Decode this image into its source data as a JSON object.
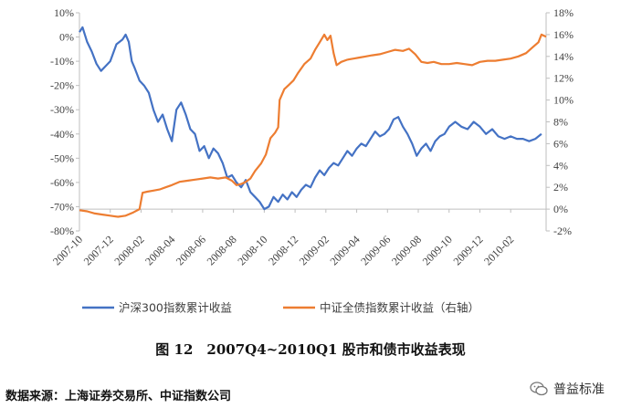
{
  "chart_data": {
    "type": "line",
    "title": "",
    "x_tick_labels": [
      "2007-10",
      "2007-12",
      "2008-02",
      "2008-04",
      "2008-06",
      "2008-08",
      "2008-10",
      "2008-12",
      "2009-02",
      "2009-04",
      "2009-06",
      "2009-08",
      "2009-10",
      "2009-12",
      "2010-02"
    ],
    "left_axis": {
      "ticks": [
        "10%",
        "0%",
        "-10%",
        "-20%",
        "-30%",
        "-40%",
        "-50%",
        "-60%",
        "-70%",
        "-80%"
      ],
      "ylim": [
        -80,
        10
      ],
      "unit": "%"
    },
    "right_axis": {
      "ticks": [
        "18%",
        "16%",
        "14%",
        "12%",
        "10%",
        "8%",
        "6%",
        "4%",
        "2%",
        "0%",
        "-2%"
      ],
      "ylim": [
        -2,
        18
      ],
      "unit": "%"
    },
    "x_domain": [
      0,
      30.3
    ],
    "series": [
      {
        "name": "沪深300指数累计收益",
        "axis": "left",
        "color": "#4472C4",
        "points": [
          [
            0,
            2
          ],
          [
            0.2,
            4
          ],
          [
            0.5,
            -2
          ],
          [
            0.8,
            -6
          ],
          [
            1.1,
            -11
          ],
          [
            1.4,
            -14
          ],
          [
            1.7,
            -12
          ],
          [
            2.0,
            -10
          ],
          [
            2.4,
            -3
          ],
          [
            2.8,
            -1
          ],
          [
            3.0,
            1
          ],
          [
            3.2,
            -2
          ],
          [
            3.4,
            -10
          ],
          [
            3.6,
            -13
          ],
          [
            3.9,
            -18
          ],
          [
            4.2,
            -20
          ],
          [
            4.5,
            -23
          ],
          [
            4.8,
            -30
          ],
          [
            5.1,
            -35
          ],
          [
            5.4,
            -32
          ],
          [
            5.7,
            -38
          ],
          [
            6.0,
            -43
          ],
          [
            6.3,
            -30
          ],
          [
            6.6,
            -27
          ],
          [
            6.9,
            -32
          ],
          [
            7.2,
            -38
          ],
          [
            7.5,
            -40
          ],
          [
            7.8,
            -47
          ],
          [
            8.1,
            -45
          ],
          [
            8.4,
            -50
          ],
          [
            8.7,
            -46
          ],
          [
            9.0,
            -48
          ],
          [
            9.3,
            -52
          ],
          [
            9.6,
            -58
          ],
          [
            9.9,
            -57
          ],
          [
            10.2,
            -60
          ],
          [
            10.5,
            -62
          ],
          [
            10.8,
            -59
          ],
          [
            11.1,
            -64
          ],
          [
            11.4,
            -66
          ],
          [
            11.7,
            -68
          ],
          [
            12.0,
            -71
          ],
          [
            12.3,
            -70
          ],
          [
            12.6,
            -66
          ],
          [
            12.9,
            -68
          ],
          [
            13.2,
            -65
          ],
          [
            13.5,
            -67
          ],
          [
            13.8,
            -64
          ],
          [
            14.1,
            -66
          ],
          [
            14.4,
            -63
          ],
          [
            14.7,
            -61
          ],
          [
            15.0,
            -62
          ],
          [
            15.3,
            -58
          ],
          [
            15.6,
            -55
          ],
          [
            15.9,
            -57
          ],
          [
            16.2,
            -54
          ],
          [
            16.5,
            -52
          ],
          [
            16.8,
            -53
          ],
          [
            17.1,
            -50
          ],
          [
            17.4,
            -47
          ],
          [
            17.7,
            -49
          ],
          [
            18.0,
            -46
          ],
          [
            18.3,
            -44
          ],
          [
            18.6,
            -45
          ],
          [
            18.9,
            -42
          ],
          [
            19.2,
            -39
          ],
          [
            19.5,
            -41
          ],
          [
            19.8,
            -40
          ],
          [
            20.1,
            -38
          ],
          [
            20.4,
            -34
          ],
          [
            20.7,
            -33
          ],
          [
            21.0,
            -37
          ],
          [
            21.3,
            -40
          ],
          [
            21.6,
            -44
          ],
          [
            21.9,
            -49
          ],
          [
            22.2,
            -46
          ],
          [
            22.5,
            -44
          ],
          [
            22.8,
            -47
          ],
          [
            23.1,
            -43
          ],
          [
            23.4,
            -41
          ],
          [
            23.7,
            -40
          ],
          [
            24.0,
            -37
          ],
          [
            24.4,
            -35
          ],
          [
            24.8,
            -37
          ],
          [
            25.2,
            -38
          ],
          [
            25.6,
            -35
          ],
          [
            26.0,
            -37
          ],
          [
            26.4,
            -40
          ],
          [
            26.8,
            -38
          ],
          [
            27.2,
            -41
          ],
          [
            27.6,
            -42
          ],
          [
            28.0,
            -41
          ],
          [
            28.4,
            -42
          ],
          [
            28.8,
            -42
          ],
          [
            29.2,
            -43
          ],
          [
            29.6,
            -42
          ],
          [
            30.0,
            -40
          ]
        ]
      },
      {
        "name": "中证全债指数累计收益（右轴）",
        "axis": "right",
        "color": "#ED7D31",
        "points": [
          [
            0,
            -0.1
          ],
          [
            0.5,
            -0.2
          ],
          [
            1.0,
            -0.4
          ],
          [
            1.5,
            -0.5
          ],
          [
            2.0,
            -0.6
          ],
          [
            2.5,
            -0.7
          ],
          [
            3.0,
            -0.6
          ],
          [
            3.5,
            -0.3
          ],
          [
            3.9,
            0.0
          ],
          [
            4.1,
            1.5
          ],
          [
            4.4,
            1.6
          ],
          [
            4.8,
            1.7
          ],
          [
            5.2,
            1.8
          ],
          [
            5.6,
            2.0
          ],
          [
            6.0,
            2.2
          ],
          [
            6.5,
            2.5
          ],
          [
            7.0,
            2.6
          ],
          [
            7.5,
            2.7
          ],
          [
            8.0,
            2.8
          ],
          [
            8.5,
            2.9
          ],
          [
            9.0,
            2.8
          ],
          [
            9.5,
            2.9
          ],
          [
            9.9,
            2.6
          ],
          [
            10.2,
            2.2
          ],
          [
            10.5,
            2.3
          ],
          [
            10.8,
            2.5
          ],
          [
            11.1,
            2.8
          ],
          [
            11.4,
            3.5
          ],
          [
            11.8,
            4.2
          ],
          [
            12.1,
            5.0
          ],
          [
            12.4,
            6.5
          ],
          [
            12.7,
            7.0
          ],
          [
            12.9,
            7.5
          ],
          [
            13.0,
            10.0
          ],
          [
            13.3,
            11.0
          ],
          [
            13.6,
            11.4
          ],
          [
            13.9,
            11.8
          ],
          [
            14.2,
            12.5
          ],
          [
            14.6,
            13.3
          ],
          [
            15.0,
            13.8
          ],
          [
            15.3,
            14.6
          ],
          [
            15.6,
            15.3
          ],
          [
            15.9,
            16.0
          ],
          [
            16.1,
            15.5
          ],
          [
            16.3,
            15.9
          ],
          [
            16.5,
            14.3
          ],
          [
            16.7,
            13.2
          ],
          [
            17.0,
            13.5
          ],
          [
            17.4,
            13.7
          ],
          [
            17.8,
            13.8
          ],
          [
            18.2,
            13.9
          ],
          [
            18.6,
            14.0
          ],
          [
            19.0,
            14.1
          ],
          [
            19.5,
            14.2
          ],
          [
            20.0,
            14.4
          ],
          [
            20.5,
            14.6
          ],
          [
            21.0,
            14.5
          ],
          [
            21.4,
            14.7
          ],
          [
            21.8,
            14.2
          ],
          [
            22.2,
            13.5
          ],
          [
            22.6,
            13.4
          ],
          [
            23.0,
            13.5
          ],
          [
            23.5,
            13.3
          ],
          [
            24.0,
            13.3
          ],
          [
            24.5,
            13.4
          ],
          [
            25.0,
            13.3
          ],
          [
            25.5,
            13.2
          ],
          [
            26.0,
            13.5
          ],
          [
            26.5,
            13.6
          ],
          [
            27.0,
            13.6
          ],
          [
            27.5,
            13.7
          ],
          [
            28.0,
            13.8
          ],
          [
            28.5,
            14.0
          ],
          [
            29.0,
            14.3
          ],
          [
            29.4,
            14.8
          ],
          [
            29.8,
            15.3
          ],
          [
            30.0,
            16.0
          ],
          [
            30.3,
            15.8
          ]
        ]
      }
    ],
    "legend_position": "bottom",
    "grid": false
  },
  "caption": "图 12　2007Q4~2010Q1 股市和债市收益表现",
  "source": "数据来源：上海证券交易所、中证指数公司",
  "watermark": "普益标准"
}
